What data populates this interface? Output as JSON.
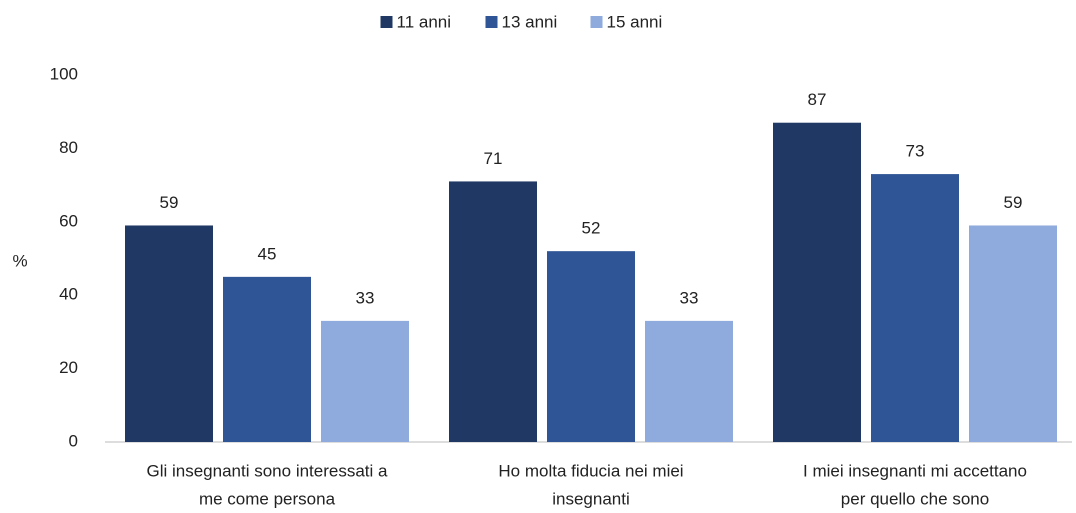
{
  "chart_data": {
    "type": "bar",
    "ylabel": "%",
    "categories": [
      [
        "Gli insegnanti sono interessati a",
        "me come persona"
      ],
      [
        "Ho molta fiducia nei miei",
        "insegnanti"
      ],
      [
        "I miei insegnanti mi accettano",
        "per quello che sono"
      ]
    ],
    "series": [
      {
        "name": "11 anni",
        "color": "#203864",
        "values": [
          59,
          71,
          87
        ]
      },
      {
        "name": "13 anni",
        "color": "#2F5597",
        "values": [
          45,
          52,
          73
        ]
      },
      {
        "name": "15 anni",
        "color": "#8FAADC",
        "values": [
          33,
          33,
          59
        ]
      }
    ],
    "ylim": [
      0,
      100
    ],
    "yticks": [
      0,
      20,
      40,
      60,
      80,
      100
    ],
    "grid": false,
    "legend": "top"
  }
}
